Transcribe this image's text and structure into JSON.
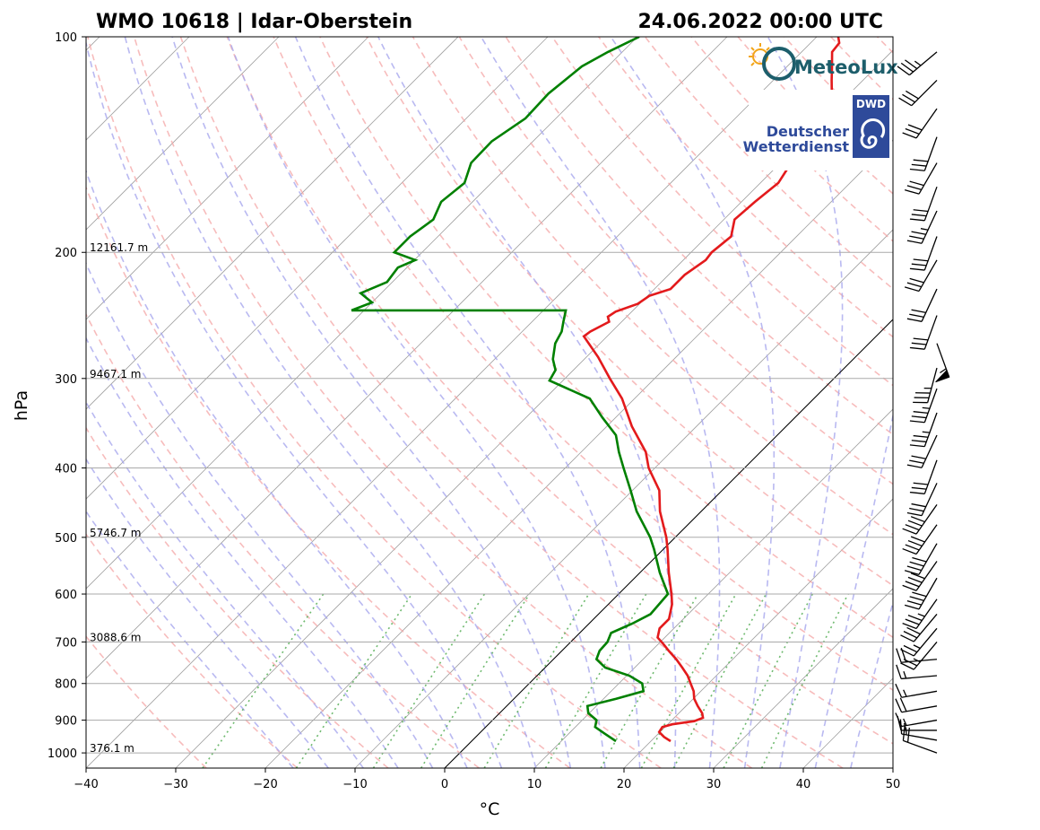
{
  "header": {
    "station": "WMO 10618 | Idar-Oberstein",
    "datetime": "24.06.2022 00:00 UTC"
  },
  "logos": {
    "meteolux": "MeteoLux",
    "dwd_badge": "DWD",
    "dwd_line1": "Deutscher",
    "dwd_line2": "Wetterdienst"
  },
  "chart_data": {
    "type": "line",
    "subtype": "skew-T log-P diagram",
    "xlabel": "°C",
    "ylabel": "hPa",
    "xlim": [
      -40,
      50
    ],
    "ylim": [
      1050,
      100
    ],
    "y_scale": "log",
    "x_ticks": [
      "−40",
      "−30",
      "−20",
      "−10",
      "0",
      "10",
      "20",
      "30",
      "40",
      "50"
    ],
    "y_ticks": [
      "100",
      "200",
      "300",
      "400",
      "500",
      "600",
      "700",
      "800",
      "900",
      "1000"
    ],
    "grid": true,
    "height_annotations": [
      {
        "p": 200,
        "label": "12161.7 m"
      },
      {
        "p": 300,
        "label": "9467.1 m"
      },
      {
        "p": 500,
        "label": "5746.7 m"
      },
      {
        "p": 700,
        "label": "3088.6 m"
      },
      {
        "p": 1000,
        "label": "376.1 m"
      }
    ],
    "background_lines": {
      "dry_adiabats": "red dashed",
      "moist_adiabats": "blue dashed",
      "mixing_ratio": "green dotted",
      "isotherms": "grey skewed",
      "zero_isotherm": "black"
    },
    "colors": {
      "temperature": "#e31a1c",
      "dewpoint": "#008000",
      "dry_adiabat": "#f4a6a6",
      "moist_adiabat": "#a8a8ee",
      "mixing_ratio": "#5fb35f",
      "isotherm": "#777777",
      "grid": "#aaaaaa"
    },
    "series": [
      {
        "name": "",
        "color": "#e31a1c",
        "points": [
          [
            963,
            22.2
          ],
          [
            950,
            21.0
          ],
          [
            935,
            19.9
          ],
          [
            920,
            19.7
          ],
          [
            912,
            20.5
          ],
          [
            903,
            22.6
          ],
          [
            893,
            23.2
          ],
          [
            880,
            22.6
          ],
          [
            860,
            21.3
          ],
          [
            840,
            20.1
          ],
          [
            820,
            19.2
          ],
          [
            800,
            18.0
          ],
          [
            780,
            16.8
          ],
          [
            760,
            15.3
          ],
          [
            740,
            13.7
          ],
          [
            720,
            11.9
          ],
          [
            705,
            10.6
          ],
          [
            690,
            9.2
          ],
          [
            670,
            8.4
          ],
          [
            650,
            8.4
          ],
          [
            620,
            7.1
          ],
          [
            600,
            5.9
          ],
          [
            560,
            3.2
          ],
          [
            520,
            0.5
          ],
          [
            500,
            -1.0
          ],
          [
            460,
            -4.6
          ],
          [
            430,
            -7.0
          ],
          [
            400,
            -10.7
          ],
          [
            380,
            -12.8
          ],
          [
            350,
            -17.2
          ],
          [
            320,
            -21.4
          ],
          [
            300,
            -25.0
          ],
          [
            280,
            -28.7
          ],
          [
            262,
            -32.6
          ],
          [
            258,
            -32.4
          ],
          [
            250,
            -31.4
          ],
          [
            246,
            -32.1
          ],
          [
            242,
            -31.8
          ],
          [
            236,
            -30.2
          ],
          [
            230,
            -29.8
          ],
          [
            225,
            -28.2
          ],
          [
            215,
            -28.2
          ],
          [
            205,
            -27.5
          ],
          [
            200,
            -27.7
          ],
          [
            190,
            -27.3
          ],
          [
            180,
            -28.8
          ],
          [
            170,
            -28.5
          ],
          [
            160,
            -28.0
          ],
          [
            150,
            -28.8
          ],
          [
            140,
            -29.7
          ],
          [
            135,
            -31.4
          ],
          [
            130,
            -30.2
          ],
          [
            125,
            -31.6
          ],
          [
            120,
            -32.0
          ],
          [
            115,
            -33.5
          ],
          [
            110,
            -35.0
          ],
          [
            105,
            -36.6
          ],
          [
            102,
            -36.8
          ],
          [
            100,
            -37.6
          ]
        ]
      },
      {
        "name": "",
        "color": "#008000",
        "points": [
          [
            963,
            16.1
          ],
          [
            940,
            14.0
          ],
          [
            920,
            12.2
          ],
          [
            900,
            11.6
          ],
          [
            880,
            9.9
          ],
          [
            860,
            9.0
          ],
          [
            840,
            11.4
          ],
          [
            820,
            13.6
          ],
          [
            800,
            12.6
          ],
          [
            780,
            10.3
          ],
          [
            760,
            6.7
          ],
          [
            740,
            4.8
          ],
          [
            720,
            4.2
          ],
          [
            700,
            4.1
          ],
          [
            680,
            3.5
          ],
          [
            660,
            4.8
          ],
          [
            640,
            5.8
          ],
          [
            600,
            5.5
          ],
          [
            560,
            2.2
          ],
          [
            520,
            -1.0
          ],
          [
            500,
            -2.8
          ],
          [
            460,
            -7.2
          ],
          [
            430,
            -10.2
          ],
          [
            400,
            -13.5
          ],
          [
            380,
            -15.8
          ],
          [
            360,
            -18.0
          ],
          [
            340,
            -21.5
          ],
          [
            320,
            -25.0
          ],
          [
            302,
            -31.5
          ],
          [
            292,
            -32.0
          ],
          [
            282,
            -33.5
          ],
          [
            268,
            -35.0
          ],
          [
            258,
            -35.6
          ],
          [
            250,
            -36.5
          ],
          [
            241,
            -37.5
          ],
          [
            241,
            -61.4
          ],
          [
            235,
            -60.0
          ],
          [
            228,
            -62.3
          ],
          [
            220,
            -60.6
          ],
          [
            210,
            -61.0
          ],
          [
            205,
            -59.9
          ],
          [
            200,
            -63.1
          ],
          [
            190,
            -63.1
          ],
          [
            180,
            -62.4
          ],
          [
            170,
            -63.5
          ],
          [
            160,
            -63.0
          ],
          [
            150,
            -64.5
          ],
          [
            140,
            -64.6
          ],
          [
            130,
            -63.4
          ],
          [
            120,
            -63.6
          ],
          [
            110,
            -62.9
          ],
          [
            105,
            -61.6
          ],
          [
            100,
            -59.8
          ]
        ]
      }
    ],
    "wind_barbs": [
      {
        "p": 1000,
        "dir": 290,
        "kt": 20
      },
      {
        "p": 960,
        "dir": 280,
        "kt": 15
      },
      {
        "p": 930,
        "dir": 270,
        "kt": 15
      },
      {
        "p": 900,
        "dir": 260,
        "kt": 15
      },
      {
        "p": 860,
        "dir": 260,
        "kt": 20
      },
      {
        "p": 820,
        "dir": 260,
        "kt": 15
      },
      {
        "p": 780,
        "dir": 265,
        "kt": 15
      },
      {
        "p": 740,
        "dir": 265,
        "kt": 20
      },
      {
        "p": 700,
        "dir": 220,
        "kt": 25
      },
      {
        "p": 670,
        "dir": 220,
        "kt": 25
      },
      {
        "p": 640,
        "dir": 220,
        "kt": 30
      },
      {
        "p": 610,
        "dir": 215,
        "kt": 35
      },
      {
        "p": 570,
        "dir": 210,
        "kt": 40
      },
      {
        "p": 540,
        "dir": 215,
        "kt": 40
      },
      {
        "p": 510,
        "dir": 210,
        "kt": 40
      },
      {
        "p": 480,
        "dir": 215,
        "kt": 40
      },
      {
        "p": 450,
        "dir": 215,
        "kt": 40
      },
      {
        "p": 420,
        "dir": 205,
        "kt": 30
      },
      {
        "p": 390,
        "dir": 200,
        "kt": 30
      },
      {
        "p": 360,
        "dir": 205,
        "kt": 30
      },
      {
        "p": 335,
        "dir": 200,
        "kt": 35
      },
      {
        "p": 310,
        "dir": 200,
        "kt": 35
      },
      {
        "p": 290,
        "dir": 195,
        "kt": 35
      },
      {
        "p": 268,
        "dir": 160,
        "kt": 55
      },
      {
        "p": 245,
        "dir": 200,
        "kt": 30
      },
      {
        "p": 225,
        "dir": 205,
        "kt": 30
      },
      {
        "p": 205,
        "dir": 210,
        "kt": 30
      },
      {
        "p": 190,
        "dir": 200,
        "kt": 30
      },
      {
        "p": 175,
        "dir": 205,
        "kt": 35
      },
      {
        "p": 162,
        "dir": 200,
        "kt": 30
      },
      {
        "p": 150,
        "dir": 210,
        "kt": 30
      },
      {
        "p": 138,
        "dir": 200,
        "kt": 30
      },
      {
        "p": 126,
        "dir": 215,
        "kt": 30
      },
      {
        "p": 115,
        "dir": 225,
        "kt": 30
      },
      {
        "p": 105,
        "dir": 230,
        "kt": 35
      }
    ]
  }
}
